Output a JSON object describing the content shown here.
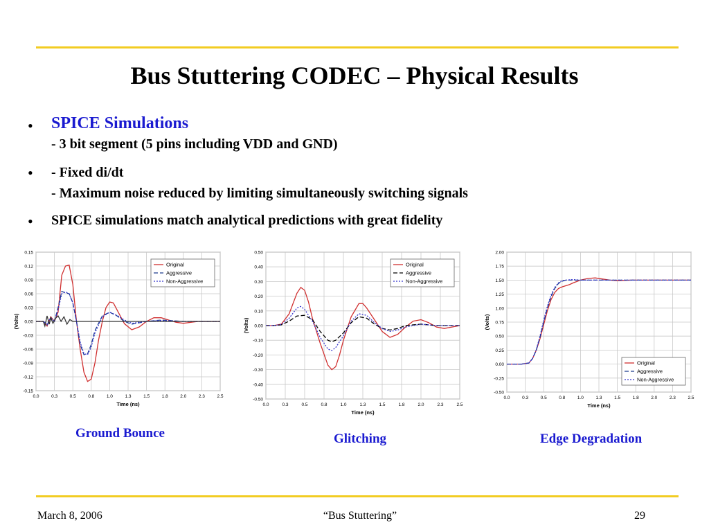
{
  "slide": {
    "title": "Bus Stuttering CODEC – Physical Results",
    "bullets": [
      {
        "marker": "•",
        "head": "SPICE Simulations",
        "lines": [
          "- 3 bit segment (5 pins including VDD and GND)"
        ]
      },
      {
        "marker": "•",
        "lines": [
          "- Fixed di/dt",
          "- Maximum noise reduced by limiting simultaneously switching signals"
        ]
      },
      {
        "marker": "•",
        "lines": [
          "SPICE simulations match analytical predictions with great fidelity"
        ]
      }
    ],
    "captions": [
      "Ground Bounce",
      "Glitching",
      "Edge Degradation"
    ],
    "footer": {
      "date": "March 8, 2006",
      "center": "“Bus Stuttering”",
      "page": "29"
    },
    "accent_color": "#f2cc22",
    "heading_color": "#1a1ad0"
  },
  "chart_data": [
    {
      "type": "line",
      "xlabel": "Time (ns)",
      "ylabel": "(Volts)",
      "xlim": [
        0,
        2.5
      ],
      "ylim": [
        -0.15,
        0.15
      ],
      "yticks": [
        "0.15",
        "0.12",
        "0.09",
        "0.06",
        "0.03",
        "0.00",
        "-0.03",
        "-0.06",
        "-0.09",
        "-0.12",
        "-0.15"
      ],
      "xticks": [
        "0.0",
        "0.3",
        "0.5",
        "0.8",
        "1.0",
        "1.3",
        "1.5",
        "1.8",
        "2.0",
        "2.3",
        "2.5"
      ],
      "grid": true,
      "legend_position": "top-right",
      "series": [
        {
          "name": "Original",
          "color": "#d03030",
          "dash": "",
          "x": [
            0,
            0.1,
            0.15,
            0.2,
            0.25,
            0.3,
            0.35,
            0.4,
            0.45,
            0.5,
            0.55,
            0.6,
            0.65,
            0.7,
            0.75,
            0.8,
            0.85,
            0.9,
            0.95,
            1.0,
            1.05,
            1.1,
            1.2,
            1.3,
            1.4,
            1.5,
            1.6,
            1.7,
            1.8,
            1.9,
            2.0,
            2.2,
            2.5
          ],
          "y": [
            0,
            0,
            -0.01,
            0.01,
            0.0,
            0.02,
            0.1,
            0.12,
            0.122,
            0.08,
            0.0,
            -0.06,
            -0.11,
            -0.13,
            -0.125,
            -0.09,
            -0.04,
            0.0,
            0.03,
            0.042,
            0.04,
            0.025,
            -0.005,
            -0.018,
            -0.012,
            0.0,
            0.008,
            0.008,
            0.003,
            -0.002,
            -0.004,
            0.0,
            0.0
          ]
        },
        {
          "name": "Aggressive",
          "color": "#1a3a8c",
          "dash": "6,3",
          "x": [
            0,
            0.1,
            0.15,
            0.2,
            0.25,
            0.3,
            0.35,
            0.4,
            0.45,
            0.5,
            0.55,
            0.6,
            0.65,
            0.7,
            0.75,
            0.8,
            0.9,
            1.0,
            1.1,
            1.2,
            1.3,
            1.5,
            1.7,
            2.0,
            2.5
          ],
          "y": [
            0,
            0,
            -0.008,
            0.008,
            0.0,
            0.03,
            0.065,
            0.062,
            0.06,
            0.04,
            0.0,
            -0.05,
            -0.072,
            -0.07,
            -0.05,
            -0.02,
            0.012,
            0.02,
            0.012,
            0.0,
            -0.006,
            0.0,
            0.003,
            0.0,
            0.0
          ]
        },
        {
          "name": "Non-Aggressive",
          "color": "#3333cc",
          "dash": "2,2",
          "x": [
            0,
            0.1,
            0.15,
            0.2,
            0.25,
            0.3,
            0.35,
            0.4,
            0.45,
            0.5,
            0.55,
            0.6,
            0.65,
            0.7,
            0.75,
            0.8,
            0.9,
            1.0,
            1.1,
            1.2,
            1.3,
            1.5,
            1.7,
            2.0,
            2.5
          ],
          "y": [
            0,
            0,
            -0.006,
            0.008,
            0.0,
            0.025,
            0.06,
            0.064,
            0.06,
            0.04,
            0.0,
            -0.045,
            -0.07,
            -0.072,
            -0.055,
            -0.025,
            0.01,
            0.02,
            0.013,
            0.003,
            -0.004,
            0.0,
            0.002,
            0.0,
            0.0
          ]
        },
        {
          "name": "",
          "color": "#333333",
          "dash": "",
          "x": [
            0,
            0.1,
            0.12,
            0.15,
            0.18,
            0.2,
            0.23,
            0.26,
            0.3,
            0.34,
            0.38,
            0.42,
            0.46,
            0.5,
            0.6,
            2.5
          ],
          "y": [
            0,
            0,
            -0.01,
            0.012,
            -0.006,
            0.008,
            -0.004,
            0.006,
            0.012,
            0.0,
            0.01,
            -0.006,
            0.004,
            0.0,
            0.0,
            0.0
          ]
        }
      ]
    },
    {
      "type": "line",
      "xlabel": "Time (ns)",
      "ylabel": "(Volts)",
      "xlim": [
        0,
        2.5
      ],
      "ylim": [
        -0.5,
        0.5
      ],
      "yticks": [
        "0.50",
        "0.40",
        "0.30",
        "0.20",
        "0.10",
        "0.00",
        "-0.10",
        "-0.20",
        "-0.30",
        "-0.40",
        "-0.50"
      ],
      "xticks": [
        "0.0",
        "0.3",
        "0.5",
        "0.8",
        "1.0",
        "1.3",
        "1.5",
        "1.8",
        "2.0",
        "2.3",
        "2.5"
      ],
      "grid": true,
      "legend_position": "top-right",
      "series": [
        {
          "name": "Original",
          "color": "#d03030",
          "dash": "",
          "x": [
            0,
            0.1,
            0.2,
            0.3,
            0.4,
            0.45,
            0.5,
            0.55,
            0.6,
            0.7,
            0.8,
            0.85,
            0.9,
            0.95,
            1.0,
            1.1,
            1.2,
            1.25,
            1.3,
            1.4,
            1.5,
            1.6,
            1.7,
            1.8,
            1.9,
            2.0,
            2.1,
            2.2,
            2.3,
            2.4,
            2.5
          ],
          "y": [
            0,
            0,
            0.01,
            0.08,
            0.22,
            0.26,
            0.24,
            0.16,
            0.05,
            -0.12,
            -0.27,
            -0.3,
            -0.28,
            -0.2,
            -0.1,
            0.06,
            0.15,
            0.15,
            0.12,
            0.04,
            -0.04,
            -0.08,
            -0.06,
            -0.01,
            0.03,
            0.04,
            0.02,
            -0.01,
            -0.02,
            -0.01,
            0.0
          ]
        },
        {
          "name": "Aggressive",
          "color": "#000000",
          "dash": "6,3",
          "x": [
            0,
            0.1,
            0.2,
            0.3,
            0.4,
            0.5,
            0.6,
            0.7,
            0.8,
            0.85,
            0.9,
            1.0,
            1.1,
            1.2,
            1.3,
            1.4,
            1.5,
            1.6,
            1.7,
            1.8,
            2.0,
            2.2,
            2.5
          ],
          "y": [
            0,
            0,
            0.005,
            0.03,
            0.065,
            0.07,
            0.04,
            -0.04,
            -0.1,
            -0.11,
            -0.1,
            -0.05,
            0.02,
            0.06,
            0.05,
            0.01,
            -0.02,
            -0.03,
            -0.02,
            0.0,
            0.01,
            0.0,
            0.0
          ]
        },
        {
          "name": "Non-Aggressive",
          "color": "#3333cc",
          "dash": "2,2",
          "x": [
            0,
            0.1,
            0.2,
            0.3,
            0.4,
            0.45,
            0.5,
            0.6,
            0.7,
            0.8,
            0.85,
            0.9,
            1.0,
            1.1,
            1.2,
            1.3,
            1.4,
            1.5,
            1.6,
            1.7,
            1.8,
            2.0,
            2.2,
            2.5
          ],
          "y": [
            0,
            0,
            0.008,
            0.05,
            0.12,
            0.13,
            0.11,
            0.03,
            -0.08,
            -0.16,
            -0.17,
            -0.15,
            -0.07,
            0.03,
            0.08,
            0.07,
            0.02,
            -0.02,
            -0.04,
            -0.03,
            -0.01,
            0.01,
            0.0,
            0.0
          ]
        }
      ]
    },
    {
      "type": "line",
      "xlabel": "Time (ns)",
      "ylabel": "(Volts)",
      "xlim": [
        0,
        2.5
      ],
      "ylim": [
        -0.5,
        2.0
      ],
      "yticks": [
        "2.00",
        "1.75",
        "1.50",
        "1.25",
        "1.00",
        "0.75",
        "0.50",
        "0.25",
        "0.00",
        "-0.25",
        "-0.50"
      ],
      "xticks": [
        "0.0",
        "0.3",
        "0.5",
        "0.8",
        "1.0",
        "1.3",
        "1.5",
        "1.8",
        "2.0",
        "2.3",
        "2.5"
      ],
      "grid": true,
      "legend_position": "bottom-right",
      "series": [
        {
          "name": "Original",
          "color": "#d03030",
          "dash": "",
          "x": [
            0,
            0.2,
            0.3,
            0.35,
            0.4,
            0.45,
            0.5,
            0.55,
            0.6,
            0.65,
            0.7,
            0.75,
            0.8,
            0.85,
            0.9,
            1.0,
            1.1,
            1.2,
            1.3,
            1.4,
            1.5,
            1.7,
            2.0,
            2.5
          ],
          "y": [
            0,
            0,
            0.02,
            0.1,
            0.25,
            0.45,
            0.7,
            0.95,
            1.15,
            1.28,
            1.35,
            1.38,
            1.4,
            1.42,
            1.45,
            1.5,
            1.53,
            1.54,
            1.52,
            1.5,
            1.49,
            1.5,
            1.5,
            1.5
          ]
        },
        {
          "name": "Aggressive",
          "color": "#1a3a8c",
          "dash": "6,3",
          "x": [
            0,
            0.2,
            0.3,
            0.35,
            0.4,
            0.45,
            0.5,
            0.55,
            0.6,
            0.65,
            0.7,
            0.75,
            0.8,
            0.9,
            1.0,
            1.1,
            1.2,
            1.4,
            1.7,
            2.0,
            2.5
          ],
          "y": [
            0,
            0,
            0.02,
            0.1,
            0.25,
            0.48,
            0.75,
            1.0,
            1.2,
            1.35,
            1.44,
            1.48,
            1.5,
            1.5,
            1.5,
            1.5,
            1.5,
            1.5,
            1.5,
            1.5,
            1.5
          ]
        },
        {
          "name": "Non-Aggressive",
          "color": "#3333cc",
          "dash": "2,2",
          "x": [
            0,
            0.2,
            0.3,
            0.35,
            0.4,
            0.45,
            0.5,
            0.55,
            0.6,
            0.65,
            0.7,
            0.75,
            0.8,
            0.9,
            1.0,
            1.2,
            1.5,
            2.0,
            2.5
          ],
          "y": [
            0,
            0,
            0.02,
            0.1,
            0.26,
            0.5,
            0.78,
            1.03,
            1.23,
            1.37,
            1.45,
            1.49,
            1.5,
            1.51,
            1.5,
            1.5,
            1.5,
            1.5,
            1.5
          ]
        }
      ]
    }
  ]
}
